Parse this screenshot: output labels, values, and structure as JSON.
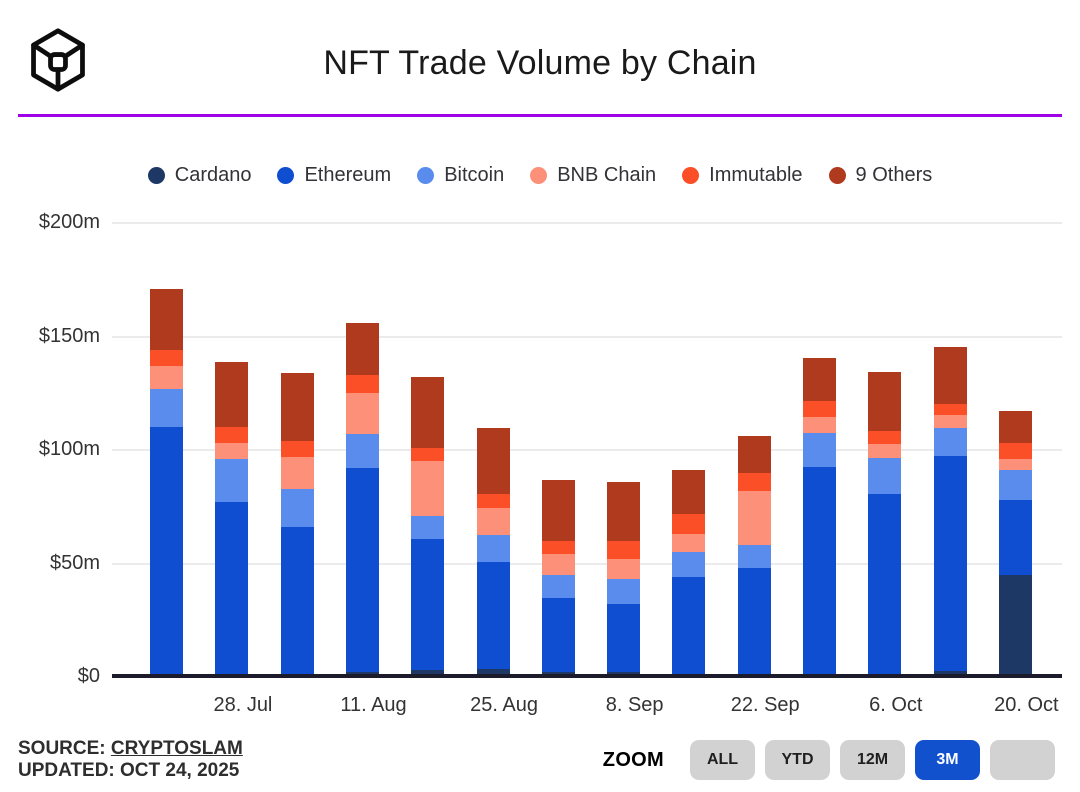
{
  "header": {
    "title": "NFT Trade Volume by Chain",
    "logo_icon": "wireframe-cube-logo"
  },
  "colors": {
    "divider_purple": "#9e00e8",
    "axis_line": "#1b1b2b",
    "gridline": "#ebebed",
    "button_gray": "#d2d2d2",
    "button_active_blue": "#1251ce",
    "text_dark": "#333333"
  },
  "chart_data": {
    "type": "bar",
    "stacked": true,
    "title": "NFT Trade Volume by Chain",
    "unit": "million USD",
    "grid": true,
    "legend_position": "top",
    "ylim": [
      0,
      200
    ],
    "yticks": [
      {
        "label": "$0",
        "value": 0
      },
      {
        "label": "$50m",
        "value": 50
      },
      {
        "label": "$100m",
        "value": 100
      },
      {
        "label": "$150m",
        "value": 150
      },
      {
        "label": "$200m",
        "value": 200
      }
    ],
    "n_bars": 14,
    "xtick_labels": [
      "28. Jul",
      "11. Aug",
      "25. Aug",
      "8. Sep",
      "22. Sep",
      "6. Oct",
      "20. Oct"
    ],
    "xtick_bar_indices": [
      1,
      3,
      5,
      7,
      9,
      11,
      13
    ],
    "series": [
      {
        "name": "Cardano",
        "color": "#1e3866",
        "values": [
          1,
          1,
          1,
          2,
          3,
          3.5,
          2,
          2,
          1,
          1,
          1.5,
          1.5,
          2.5,
          45
        ]
      },
      {
        "name": "Ethereum",
        "color": "#0f4dd1",
        "values": [
          109,
          76,
          65,
          90,
          58,
          47,
          33,
          30,
          43,
          47,
          91,
          79,
          95,
          33
        ]
      },
      {
        "name": "Bitcoin",
        "color": "#5a8cee",
        "values": [
          17,
          19,
          17,
          15,
          10,
          12,
          10,
          11,
          11,
          10,
          15,
          16,
          12,
          13
        ]
      },
      {
        "name": "BNB Chain",
        "color": "#fc9078",
        "values": [
          10,
          7,
          14,
          18,
          24,
          12,
          9,
          9,
          8,
          24,
          7,
          6,
          6,
          5
        ]
      },
      {
        "name": "Immutable",
        "color": "#fa4f27",
        "values": [
          7,
          7,
          7,
          8,
          6,
          6,
          6,
          8,
          9,
          8,
          7,
          6,
          5,
          7
        ]
      },
      {
        "name": "9 Others",
        "color": "#b03a1d",
        "values": [
          27,
          29,
          30,
          23,
          31,
          29,
          27,
          26,
          19,
          16,
          19,
          26,
          25,
          14
        ]
      }
    ]
  },
  "footer": {
    "source_label": "SOURCE:",
    "source_link": "CRYPTOSLAM",
    "updated": "UPDATED: OCT 24, 2025",
    "zoom_label": "ZOOM",
    "zoom_buttons": [
      {
        "label": "ALL",
        "active": false
      },
      {
        "label": "YTD",
        "active": false
      },
      {
        "label": "12M",
        "active": false
      },
      {
        "label": "3M",
        "active": true
      },
      {
        "label": "",
        "active": false
      }
    ]
  }
}
